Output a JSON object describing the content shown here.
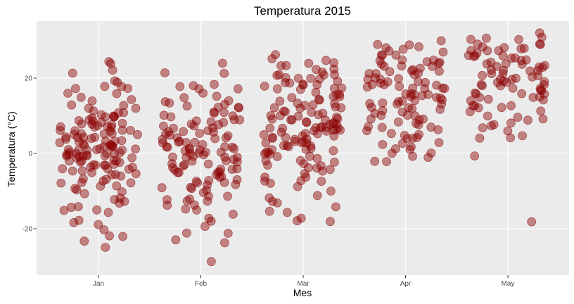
{
  "colors": {
    "panel": "#ebebeb",
    "grid_major": "#ffffff",
    "point": "#8b0000"
  },
  "chart_data": {
    "type": "scatter",
    "title": "Temperatura 2015",
    "xlabel": "Mes",
    "ylabel": "Temperatura (°C)",
    "categories": [
      "Jan",
      "Feb",
      "Mar",
      "Apr",
      "May"
    ],
    "y_ticks": [
      -20,
      0,
      20
    ],
    "y_tick_labels": [
      "-20",
      "0",
      "20"
    ],
    "ylim": [
      -31,
      34
    ],
    "grid": true,
    "jitter": "horizontal",
    "point_opacity": 0.45,
    "series": [
      {
        "category": "Jan",
        "values": [
          24,
          24,
          22,
          21,
          19,
          19,
          18,
          18,
          17,
          17,
          16,
          16,
          15,
          14,
          14,
          13,
          13,
          12,
          12,
          11,
          11,
          11,
          10,
          10,
          10,
          10,
          10,
          9,
          9,
          9,
          9,
          8,
          8,
          8,
          8,
          8,
          7,
          7,
          7,
          7,
          7,
          6,
          6,
          6,
          6,
          6,
          5,
          5,
          5,
          5,
          5,
          4,
          4,
          4,
          4,
          4,
          4,
          3,
          3,
          3,
          3,
          3,
          3,
          2,
          2,
          2,
          2,
          2,
          2,
          2,
          1,
          1,
          1,
          1,
          1,
          1,
          1,
          0,
          0,
          0,
          0,
          0,
          0,
          0,
          0,
          -1,
          -1,
          -1,
          -1,
          -1,
          -1,
          -1,
          -2,
          -2,
          -2,
          -2,
          -2,
          -2,
          -3,
          -3,
          -3,
          -3,
          -3,
          -4,
          -4,
          -4,
          -4,
          -4,
          -5,
          -5,
          -5,
          -5,
          -6,
          -6,
          -6,
          -7,
          -7,
          -7,
          -8,
          -8,
          -8,
          -9,
          -9,
          -9,
          -10,
          -10,
          -11,
          -12,
          -12,
          -13,
          -13,
          -14,
          -14,
          -15,
          -15,
          -16,
          -18,
          -18,
          -19,
          -20,
          -22,
          -22,
          -23,
          -25
        ]
      },
      {
        "category": "Feb",
        "values": [
          24,
          21,
          21,
          18,
          18,
          18,
          17,
          17,
          16,
          15,
          15,
          14,
          14,
          13,
          13,
          13,
          12,
          12,
          12,
          11,
          11,
          11,
          10,
          10,
          10,
          9,
          9,
          9,
          8,
          8,
          8,
          8,
          7,
          7,
          7,
          7,
          6,
          6,
          6,
          6,
          5,
          5,
          5,
          5,
          4,
          4,
          4,
          4,
          3,
          3,
          3,
          3,
          3,
          2,
          2,
          2,
          2,
          2,
          1,
          1,
          1,
          1,
          1,
          0,
          0,
          0,
          0,
          0,
          -1,
          -1,
          -1,
          -1,
          -1,
          -2,
          -2,
          -2,
          -2,
          -3,
          -3,
          -3,
          -3,
          -4,
          -4,
          -4,
          -4,
          -4,
          -5,
          -5,
          -5,
          -5,
          -6,
          -6,
          -6,
          -7,
          -7,
          -7,
          -8,
          -8,
          -8,
          -8,
          -9,
          -9,
          -9,
          -10,
          -10,
          -11,
          -11,
          -12,
          -12,
          -13,
          -13,
          -14,
          -14,
          -15,
          -15,
          -16,
          -17,
          -18,
          -19,
          -21,
          -21,
          -23,
          -24,
          -29
        ]
      },
      {
        "category": "Mar",
        "values": [
          26,
          25,
          25,
          24,
          24,
          23,
          23,
          22,
          22,
          22,
          21,
          21,
          21,
          21,
          20,
          20,
          20,
          20,
          19,
          19,
          19,
          18,
          18,
          18,
          18,
          17,
          17,
          17,
          17,
          16,
          16,
          16,
          15,
          15,
          15,
          14,
          14,
          14,
          13,
          13,
          13,
          13,
          12,
          12,
          12,
          12,
          11,
          11,
          11,
          11,
          10,
          10,
          10,
          10,
          10,
          9,
          9,
          9,
          9,
          9,
          8,
          8,
          8,
          8,
          8,
          8,
          7,
          7,
          7,
          7,
          7,
          7,
          7,
          6,
          6,
          6,
          6,
          6,
          6,
          5,
          5,
          5,
          5,
          5,
          4,
          4,
          4,
          4,
          4,
          3,
          3,
          3,
          3,
          3,
          2,
          2,
          2,
          2,
          1,
          1,
          1,
          1,
          0,
          0,
          0,
          0,
          -1,
          -1,
          -1,
          -2,
          -2,
          -2,
          -3,
          -3,
          -3,
          -4,
          -4,
          -4,
          -5,
          -5,
          -6,
          -6,
          -7,
          -7,
          -7,
          -8,
          -9,
          -10,
          -11,
          -12,
          -13,
          -13,
          -14,
          -15,
          -16,
          -17,
          -18,
          -18
        ]
      },
      {
        "category": "Apr",
        "values": [
          30,
          29,
          29,
          28,
          28,
          28,
          27,
          27,
          26,
          26,
          26,
          25,
          25,
          25,
          24,
          24,
          24,
          24,
          23,
          23,
          23,
          23,
          22,
          22,
          22,
          22,
          21,
          21,
          21,
          21,
          20,
          20,
          20,
          20,
          19,
          19,
          19,
          19,
          18,
          18,
          18,
          18,
          18,
          17,
          17,
          17,
          17,
          16,
          16,
          16,
          16,
          15,
          15,
          15,
          15,
          14,
          14,
          14,
          14,
          13,
          13,
          13,
          13,
          12,
          12,
          12,
          12,
          11,
          11,
          11,
          10,
          10,
          10,
          9,
          9,
          9,
          8,
          8,
          8,
          7,
          7,
          7,
          6,
          6,
          5,
          5,
          5,
          4,
          4,
          4,
          3,
          3,
          2,
          2,
          1,
          1,
          0,
          0,
          -1,
          -1,
          -2,
          -2
        ]
      },
      {
        "category": "May",
        "values": [
          32,
          31,
          31,
          30,
          30,
          29,
          29,
          29,
          28,
          28,
          28,
          28,
          27,
          27,
          27,
          27,
          26,
          26,
          26,
          26,
          25,
          25,
          25,
          25,
          24,
          24,
          24,
          24,
          23,
          23,
          23,
          23,
          22,
          22,
          22,
          22,
          21,
          21,
          21,
          21,
          20,
          20,
          20,
          20,
          19,
          19,
          19,
          19,
          18,
          18,
          18,
          18,
          17,
          17,
          17,
          17,
          16,
          16,
          16,
          16,
          15,
          15,
          15,
          14,
          14,
          14,
          13,
          13,
          13,
          12,
          12,
          11,
          11,
          10,
          10,
          9,
          9,
          8,
          8,
          7,
          7,
          6,
          5,
          4,
          4,
          -1,
          -18
        ]
      }
    ]
  }
}
